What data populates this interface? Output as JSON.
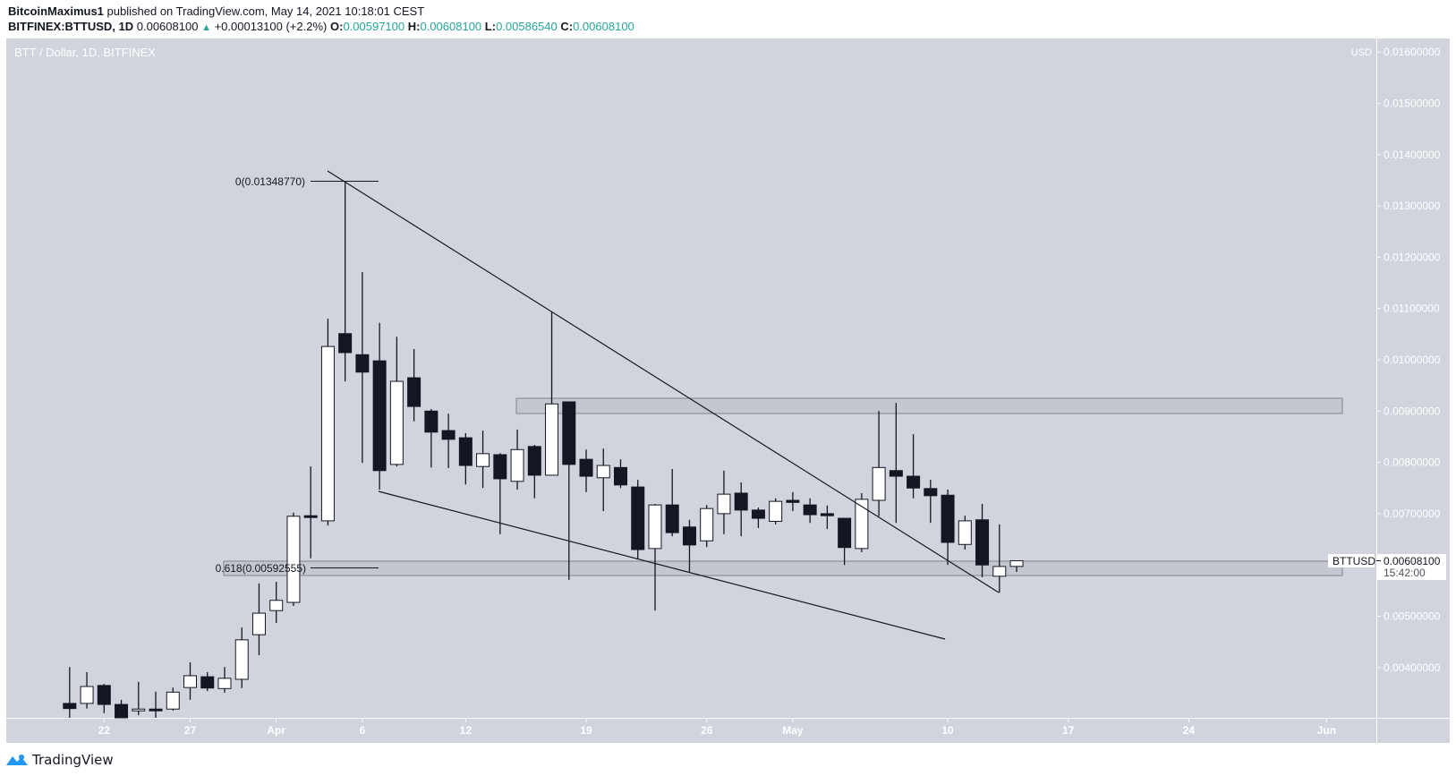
{
  "header": {
    "publisher": "BitcoinMaximus1",
    "published_text": "published on TradingView.com, May 14, 2021 10:18:01 CEST",
    "symbol": "BITFINEX:BTTUSD, 1D",
    "last": "0.00608100",
    "change": "+0.00013100 (+2.2%)",
    "o_label": "O:",
    "o": "0.00597100",
    "h_label": "H:",
    "h": "0.00608100",
    "l_label": "L:",
    "l": "0.00586540",
    "c_label": "C:",
    "c": "0.00608100",
    "up_icon": "triangle-up-icon"
  },
  "chart": {
    "legend": "BTT / Dollar, 1D, BITFINEX",
    "currency": "USD",
    "price_ticks": [
      "0.01600000",
      "0.01500000",
      "0.01400000",
      "0.01300000",
      "0.01200000",
      "0.01100000",
      "0.01000000",
      "0.00900000",
      "0.00800000",
      "0.00700000",
      "0.00500000",
      "0.00400000"
    ],
    "price_tick_values": [
      0.016,
      0.015,
      0.014,
      0.013,
      0.012,
      0.011,
      0.01,
      0.009,
      0.008,
      0.007,
      0.005,
      0.004
    ],
    "date_ticks": [
      "22",
      "27",
      "Apr",
      "6",
      "12",
      "19",
      "26",
      "May",
      "10",
      "17",
      "24",
      "Jun"
    ],
    "date_tick_days_from_mar22": [
      0,
      5,
      10,
      15,
      21,
      28,
      35,
      40,
      49,
      56,
      63,
      71
    ],
    "symbol_label": "BTTUSD",
    "last_price_label": "0.00608100",
    "countdown": "15:42:00",
    "fib_0_label": "0(0.01348770)",
    "fib_618_label": "0.618(0.00592555)",
    "colors": {
      "background": "#d1d4dc",
      "up": "#ffffff",
      "down": "#131722",
      "axis_text": "#ffffff",
      "teal": "#26a69a"
    }
  },
  "chart_data": {
    "type": "candlestick",
    "title": "BTT / Dollar, 1D, BITFINEX",
    "ylim": [
      0.0034,
      0.0163
    ],
    "candles": [
      {
        "date": "Mar 20",
        "o": 0.0033,
        "h": 0.00401,
        "l": 0.003,
        "c": 0.0032
      },
      {
        "date": "Mar 21",
        "o": 0.0033,
        "h": 0.00391,
        "l": 0.0032,
        "c": 0.00363
      },
      {
        "date": "Mar 22",
        "o": 0.00365,
        "h": 0.00368,
        "l": 0.00311,
        "c": 0.00328
      },
      {
        "date": "Mar 23",
        "o": 0.00328,
        "h": 0.00337,
        "l": 0.0029,
        "c": 0.003
      },
      {
        "date": "Mar 24",
        "o": 0.00316,
        "h": 0.00372,
        "l": 0.00307,
        "c": 0.00319
      },
      {
        "date": "Mar 25",
        "o": 0.00319,
        "h": 0.00353,
        "l": 0.003,
        "c": 0.00316
      },
      {
        "date": "Mar 26",
        "o": 0.00319,
        "h": 0.00361,
        "l": 0.00316,
        "c": 0.00352
      },
      {
        "date": "Mar 27",
        "o": 0.00361,
        "h": 0.0041,
        "l": 0.00337,
        "c": 0.00384
      },
      {
        "date": "Mar 28",
        "o": 0.00382,
        "h": 0.00391,
        "l": 0.00354,
        "c": 0.0036
      },
      {
        "date": "Mar 29",
        "o": 0.00359,
        "h": 0.00401,
        "l": 0.00351,
        "c": 0.00379
      },
      {
        "date": "Mar 30",
        "o": 0.00377,
        "h": 0.00478,
        "l": 0.0036,
        "c": 0.00454
      },
      {
        "date": "Mar 31",
        "o": 0.00464,
        "h": 0.00564,
        "l": 0.00424,
        "c": 0.00506
      },
      {
        "date": "Apr 1",
        "o": 0.00511,
        "h": 0.00567,
        "l": 0.00487,
        "c": 0.00531
      },
      {
        "date": "Apr 2",
        "o": 0.00527,
        "h": 0.00702,
        "l": 0.0052,
        "c": 0.00695
      },
      {
        "date": "Apr 3",
        "o": 0.00696,
        "h": 0.00792,
        "l": 0.00613,
        "c": 0.00694
      },
      {
        "date": "Apr 4",
        "o": 0.00686,
        "h": 0.0108,
        "l": 0.00677,
        "c": 0.01026
      },
      {
        "date": "Apr 5",
        "o": 0.01051,
        "h": 0.01349,
        "l": 0.00958,
        "c": 0.01014
      },
      {
        "date": "Apr 6",
        "o": 0.0101,
        "h": 0.01171,
        "l": 0.00799,
        "c": 0.00976
      },
      {
        "date": "Apr 7",
        "o": 0.00998,
        "h": 0.01072,
        "l": 0.00747,
        "c": 0.00784
      },
      {
        "date": "Apr 8",
        "o": 0.00796,
        "h": 0.01045,
        "l": 0.00792,
        "c": 0.00958
      },
      {
        "date": "Apr 9",
        "o": 0.00965,
        "h": 0.01021,
        "l": 0.0088,
        "c": 0.00909
      },
      {
        "date": "Apr 10",
        "o": 0.009,
        "h": 0.00904,
        "l": 0.0079,
        "c": 0.00859
      },
      {
        "date": "Apr 11",
        "o": 0.00862,
        "h": 0.00895,
        "l": 0.00789,
        "c": 0.00845
      },
      {
        "date": "Apr 12",
        "o": 0.00848,
        "h": 0.00857,
        "l": 0.00757,
        "c": 0.00794
      },
      {
        "date": "Apr 13",
        "o": 0.00792,
        "h": 0.00862,
        "l": 0.0075,
        "c": 0.00817
      },
      {
        "date": "Apr 14",
        "o": 0.00815,
        "h": 0.00818,
        "l": 0.0066,
        "c": 0.00768
      },
      {
        "date": "Apr 15",
        "o": 0.00763,
        "h": 0.00864,
        "l": 0.00747,
        "c": 0.00825
      },
      {
        "date": "Apr 16",
        "o": 0.00831,
        "h": 0.00834,
        "l": 0.0073,
        "c": 0.00775
      },
      {
        "date": "Apr 17",
        "o": 0.00775,
        "h": 0.01094,
        "l": 0.00775,
        "c": 0.00914
      },
      {
        "date": "Apr 18",
        "o": 0.00918,
        "h": 0.00918,
        "l": 0.00571,
        "c": 0.00796
      },
      {
        "date": "Apr 19",
        "o": 0.00806,
        "h": 0.00825,
        "l": 0.00742,
        "c": 0.00773
      },
      {
        "date": "Apr 20",
        "o": 0.0077,
        "h": 0.00827,
        "l": 0.00705,
        "c": 0.00794
      },
      {
        "date": "Apr 21",
        "o": 0.0079,
        "h": 0.00806,
        "l": 0.0075,
        "c": 0.00756
      },
      {
        "date": "Apr 22",
        "o": 0.00752,
        "h": 0.00766,
        "l": 0.00611,
        "c": 0.0063
      },
      {
        "date": "Apr 23",
        "o": 0.00632,
        "h": 0.00719,
        "l": 0.00511,
        "c": 0.00717
      },
      {
        "date": "Apr 24",
        "o": 0.00717,
        "h": 0.00787,
        "l": 0.00656,
        "c": 0.00663
      },
      {
        "date": "Apr 25",
        "o": 0.00674,
        "h": 0.00688,
        "l": 0.00585,
        "c": 0.00639
      },
      {
        "date": "Apr 26",
        "o": 0.00647,
        "h": 0.00717,
        "l": 0.00635,
        "c": 0.0071
      },
      {
        "date": "Apr 27",
        "o": 0.007,
        "h": 0.00784,
        "l": 0.0066,
        "c": 0.00738
      },
      {
        "date": "Apr 28",
        "o": 0.0074,
        "h": 0.00761,
        "l": 0.00656,
        "c": 0.00707
      },
      {
        "date": "Apr 29",
        "o": 0.00707,
        "h": 0.00712,
        "l": 0.00672,
        "c": 0.00691
      },
      {
        "date": "Apr 30",
        "o": 0.00685,
        "h": 0.0073,
        "l": 0.00679,
        "c": 0.00724
      },
      {
        "date": "May 1",
        "o": 0.00726,
        "h": 0.00742,
        "l": 0.00705,
        "c": 0.00722
      },
      {
        "date": "May 2",
        "o": 0.00717,
        "h": 0.0073,
        "l": 0.00682,
        "c": 0.00698
      },
      {
        "date": "May 3",
        "o": 0.007,
        "h": 0.00716,
        "l": 0.0067,
        "c": 0.00696
      },
      {
        "date": "May 4",
        "o": 0.00691,
        "h": 0.00691,
        "l": 0.006,
        "c": 0.00634
      },
      {
        "date": "May 5",
        "o": 0.00632,
        "h": 0.0074,
        "l": 0.00625,
        "c": 0.00728
      },
      {
        "date": "May 6",
        "o": 0.00726,
        "h": 0.009,
        "l": 0.00695,
        "c": 0.0079
      },
      {
        "date": "May 7",
        "o": 0.00784,
        "h": 0.00916,
        "l": 0.00682,
        "c": 0.00773
      },
      {
        "date": "May 8",
        "o": 0.00773,
        "h": 0.00855,
        "l": 0.0073,
        "c": 0.0075
      },
      {
        "date": "May 9",
        "o": 0.00749,
        "h": 0.00766,
        "l": 0.00682,
        "c": 0.00735
      },
      {
        "date": "May 10",
        "o": 0.00736,
        "h": 0.00747,
        "l": 0.006,
        "c": 0.00644
      },
      {
        "date": "May 11",
        "o": 0.0064,
        "h": 0.00696,
        "l": 0.0063,
        "c": 0.00686
      },
      {
        "date": "May 12",
        "o": 0.00688,
        "h": 0.00719,
        "l": 0.00576,
        "c": 0.006
      },
      {
        "date": "May 13",
        "o": 0.00578,
        "h": 0.00679,
        "l": 0.00546,
        "c": 0.00597
      },
      {
        "date": "May 14",
        "o": 0.005971,
        "h": 0.006081,
        "l": 0.0058654,
        "c": 0.006081
      }
    ]
  },
  "footer": {
    "brand": "TradingView",
    "logo_icon": "tradingview-logo-icon"
  }
}
